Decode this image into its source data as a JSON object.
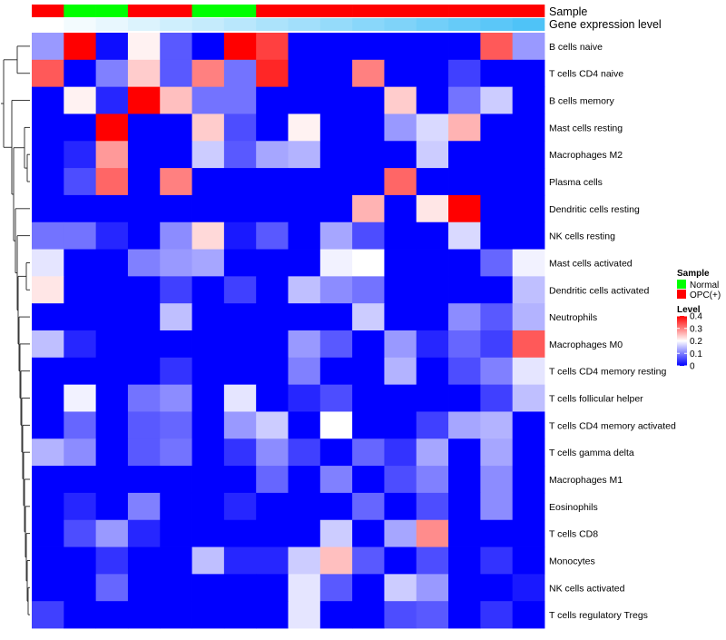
{
  "chart_data": {
    "type": "heatmap",
    "annotation_labels": {
      "sample": "Sample",
      "expression": "Gene expression level"
    },
    "sample_groups": [
      "OPC(+)",
      "Normal",
      "Normal",
      "OPC(+)",
      "OPC(+)",
      "Normal",
      "Normal",
      "OPC(+)",
      "OPC(+)",
      "OPC(+)",
      "OPC(+)",
      "OPC(+)",
      "OPC(+)",
      "OPC(+)",
      "OPC(+)",
      "OPC(+)"
    ],
    "expression_levels": [
      0.0,
      0.07,
      0.13,
      0.2,
      0.27,
      0.33,
      0.4,
      0.47,
      0.53,
      0.6,
      0.67,
      0.73,
      0.8,
      0.87,
      0.93,
      1.0
    ],
    "rows": [
      "B cells naive",
      "T cells CD4 naive",
      "B cells memory",
      "Mast cells resting",
      "Macrophages M2",
      "Plasma cells",
      "Dendritic cells resting",
      "NK cells resting",
      "Mast cells activated",
      "Dendritic cells activated",
      "Neutrophils",
      "Macrophages M0",
      "T cells CD4 memory resting",
      "T cells follicular helper",
      "T cells CD4 memory activated",
      "T cells gamma delta",
      "Macrophages M1",
      "Eosinophils",
      "T cells CD8",
      "Monocytes",
      "NK cells activated",
      "T cells regulatory  Tregs"
    ],
    "values": [
      [
        0.12,
        0.4,
        0.01,
        0.21,
        0.07,
        0.0,
        0.4,
        0.35,
        0.0,
        0.0,
        0.0,
        0.0,
        0.0,
        0.0,
        0.33,
        0.12
      ],
      [
        0.33,
        0.0,
        0.1,
        0.24,
        0.07,
        0.3,
        0.09,
        0.37,
        0.0,
        0.0,
        0.3,
        0.0,
        0.0,
        0.05,
        0.0,
        0.0
      ],
      [
        0.0,
        0.21,
        0.03,
        0.4,
        0.25,
        0.09,
        0.09,
        0.0,
        0.0,
        0.0,
        0.0,
        0.24,
        0.0,
        0.09,
        0.16,
        0.0
      ],
      [
        0.0,
        0.0,
        0.4,
        0.0,
        0.0,
        0.24,
        0.06,
        0.0,
        0.21,
        0.0,
        0.0,
        0.12,
        0.17,
        0.26,
        0.0,
        0.0
      ],
      [
        0.0,
        0.03,
        0.28,
        0.0,
        0.0,
        0.16,
        0.07,
        0.13,
        0.14,
        0.0,
        0.0,
        0.0,
        0.16,
        0.0,
        0.0,
        0.0
      ],
      [
        0.0,
        0.06,
        0.32,
        0.0,
        0.3,
        0.0,
        0.0,
        0.0,
        0.0,
        0.0,
        0.0,
        0.32,
        0.0,
        0.0,
        0.0,
        0.0
      ],
      [
        0.0,
        0.0,
        0.0,
        0.0,
        0.0,
        0.0,
        0.0,
        0.0,
        0.0,
        0.0,
        0.26,
        0.0,
        0.22,
        0.4,
        0.0,
        0.0
      ],
      [
        0.09,
        0.09,
        0.03,
        0.0,
        0.11,
        0.23,
        0.02,
        0.07,
        0.0,
        0.13,
        0.06,
        0.0,
        0.0,
        0.17,
        0.0,
        0.0
      ],
      [
        0.18,
        0.0,
        0.0,
        0.1,
        0.12,
        0.13,
        0.0,
        0.0,
        0.0,
        0.19,
        0.2,
        0.0,
        0.0,
        0.0,
        0.08,
        0.19
      ],
      [
        0.22,
        0.0,
        0.0,
        0.0,
        0.05,
        0.0,
        0.05,
        0.0,
        0.15,
        0.11,
        0.09,
        0.0,
        0.0,
        0.0,
        0.0,
        0.15
      ],
      [
        0.0,
        0.0,
        0.0,
        0.0,
        0.15,
        0.0,
        0.0,
        0.0,
        0.0,
        0.0,
        0.16,
        0.0,
        0.0,
        0.11,
        0.07,
        0.14
      ],
      [
        0.15,
        0.03,
        0.0,
        0.0,
        0.0,
        0.0,
        0.0,
        0.0,
        0.12,
        0.07,
        0.0,
        0.12,
        0.03,
        0.08,
        0.05,
        0.33
      ],
      [
        0.0,
        0.0,
        0.0,
        0.0,
        0.04,
        0.0,
        0.0,
        0.0,
        0.1,
        0.0,
        0.0,
        0.14,
        0.0,
        0.06,
        0.1,
        0.18
      ],
      [
        0.0,
        0.19,
        0.0,
        0.09,
        0.11,
        0.0,
        0.18,
        0.0,
        0.03,
        0.06,
        0.0,
        0.0,
        0.0,
        0.0,
        0.05,
        0.15
      ],
      [
        0.0,
        0.08,
        0.0,
        0.07,
        0.08,
        0.0,
        0.12,
        0.16,
        0.0,
        0.2,
        0.0,
        0.0,
        0.05,
        0.13,
        0.14,
        0.0
      ],
      [
        0.14,
        0.11,
        0.0,
        0.07,
        0.09,
        0.0,
        0.04,
        0.11,
        0.05,
        0.0,
        0.08,
        0.04,
        0.13,
        0.0,
        0.13,
        0.0
      ],
      [
        0.0,
        0.0,
        0.0,
        0.0,
        0.0,
        0.0,
        0.0,
        0.08,
        0.0,
        0.1,
        0.0,
        0.06,
        0.1,
        0.0,
        0.11,
        0.0
      ],
      [
        0.0,
        0.03,
        0.0,
        0.1,
        0.0,
        0.0,
        0.03,
        0.0,
        0.0,
        0.0,
        0.08,
        0.0,
        0.06,
        0.0,
        0.11,
        0.0
      ],
      [
        0.0,
        0.06,
        0.12,
        0.03,
        0.0,
        0.0,
        0.0,
        0.0,
        0.0,
        0.16,
        0.0,
        0.13,
        0.29,
        0.0,
        0.0,
        0.0
      ],
      [
        0.0,
        0.0,
        0.04,
        0.0,
        0.0,
        0.15,
        0.03,
        0.03,
        0.16,
        0.25,
        0.07,
        0.0,
        0.06,
        0.0,
        0.04,
        0.0
      ],
      [
        0.0,
        0.0,
        0.08,
        0.0,
        0.0,
        0.0,
        0.0,
        0.0,
        0.18,
        0.07,
        0.0,
        0.16,
        0.12,
        0.0,
        0.0,
        0.02
      ],
      [
        0.05,
        0.0,
        0.0,
        0.0,
        0.0,
        0.0,
        0.0,
        0.0,
        0.18,
        0.0,
        0.0,
        0.06,
        0.07,
        0.0,
        0.04,
        0.0
      ]
    ],
    "color_scale": {
      "min": 0,
      "mid": 0.2,
      "max": 0.4,
      "low_color": "#0000ff",
      "mid_color": "#ffffff",
      "high_color": "#ff0000"
    },
    "legend": {
      "sample_title": "Sample",
      "sample_entries": [
        {
          "label": "Normal",
          "color": "#00ff00"
        },
        {
          "label": "OPC(+)",
          "color": "#ff0000"
        }
      ],
      "level_title": "Level",
      "level_ticks": [
        "0.4",
        "0.3",
        "0.2",
        "0.1",
        "0"
      ],
      "placement": "right"
    },
    "expression_colors": {
      "low": "#ffffff",
      "high": "#4fc3f7"
    },
    "dendrogram": "rows"
  }
}
